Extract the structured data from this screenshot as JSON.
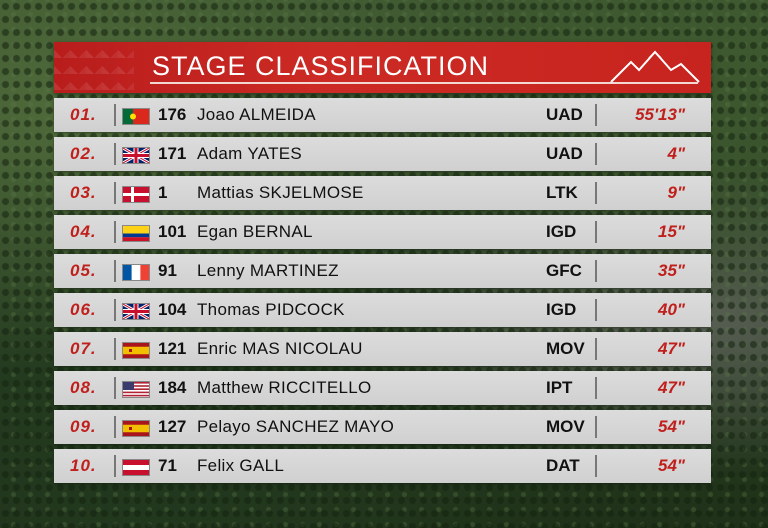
{
  "header": {
    "title": "STAGE CLASSIFICATION"
  },
  "colors": {
    "header_red": "#c8241f",
    "position_red": "#c0201c",
    "row_bg": "#d6d6d6"
  },
  "rows": [
    {
      "pos": "01.",
      "flag": "portugal-flag-icon",
      "num": "176",
      "name": "Joao ALMEIDA",
      "team": "UAD",
      "time": "55'13\""
    },
    {
      "pos": "02.",
      "flag": "uk-flag-icon",
      "num": "171",
      "name": "Adam YATES",
      "team": "UAD",
      "time": "4\""
    },
    {
      "pos": "03.",
      "flag": "denmark-flag-icon",
      "num": "1",
      "name": "Mattias SKJELMOSE",
      "team": "LTK",
      "time": "9\""
    },
    {
      "pos": "04.",
      "flag": "colombia-flag-icon",
      "num": "101",
      "name": "Egan BERNAL",
      "team": "IGD",
      "time": "15\""
    },
    {
      "pos": "05.",
      "flag": "france-flag-icon",
      "num": "91",
      "name": "Lenny MARTINEZ",
      "team": "GFC",
      "time": "35\""
    },
    {
      "pos": "06.",
      "flag": "uk-flag-icon",
      "num": "104",
      "name": "Thomas PIDCOCK",
      "team": "IGD",
      "time": "40\""
    },
    {
      "pos": "07.",
      "flag": "spain-flag-icon",
      "num": "121",
      "name": "Enric MAS NICOLAU",
      "team": "MOV",
      "time": "47\""
    },
    {
      "pos": "08.",
      "flag": "usa-flag-icon",
      "num": "184",
      "name": "Matthew RICCITELLO",
      "team": "IPT",
      "time": "47\""
    },
    {
      "pos": "09.",
      "flag": "spain-flag-icon",
      "num": "127",
      "name": "Pelayo SANCHEZ MAYO",
      "team": "MOV",
      "time": "54\""
    },
    {
      "pos": "10.",
      "flag": "austria-flag-icon",
      "num": "71",
      "name": "Felix GALL",
      "team": "DAT",
      "time": "54\""
    }
  ]
}
